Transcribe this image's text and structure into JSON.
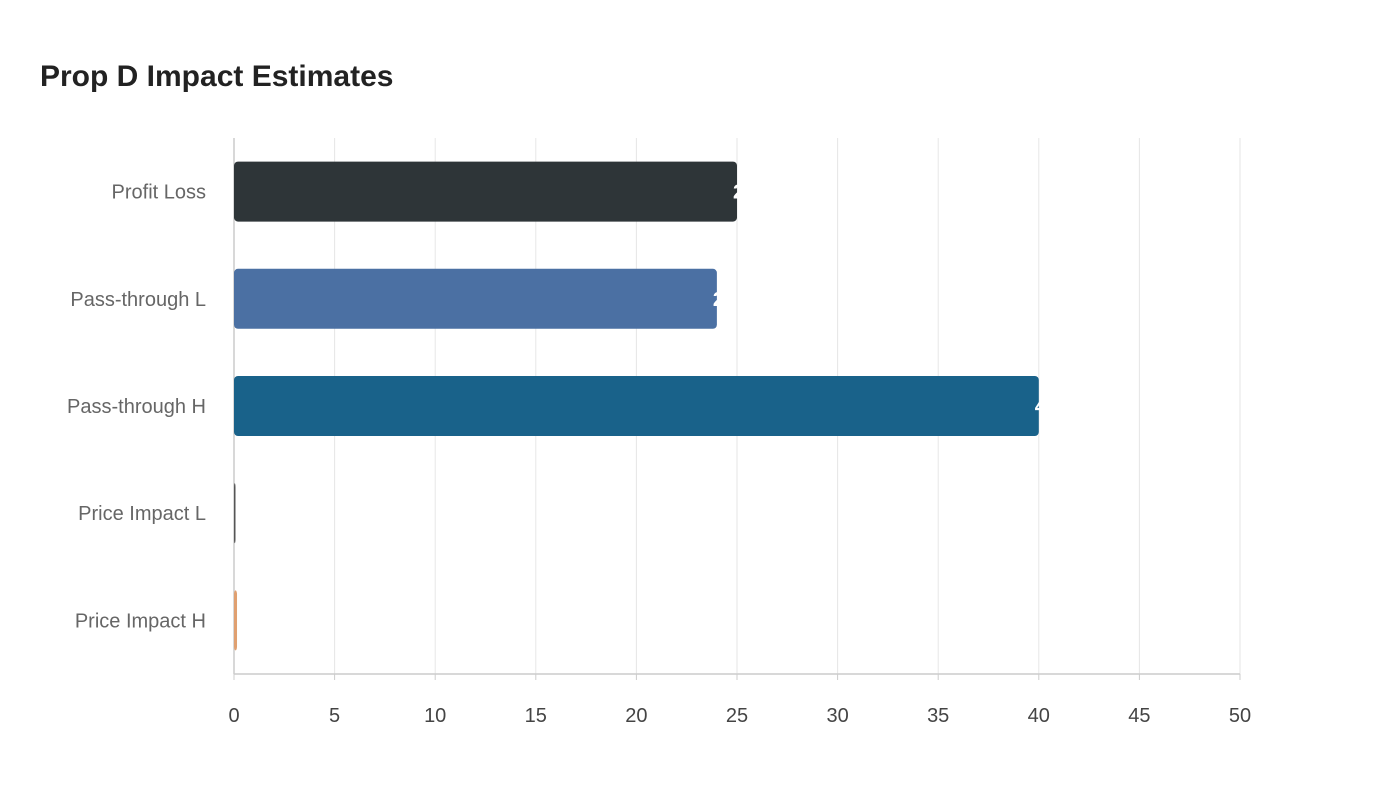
{
  "chart_data": {
    "type": "bar",
    "orientation": "horizontal",
    "title": "Prop D Impact Estimates",
    "xlabel": "",
    "ylabel": "",
    "categories": [
      "Profit Loss",
      "Pass-through L",
      "Pass-through H",
      "Price Impact L",
      "Price Impact H"
    ],
    "values": [
      25,
      24,
      40,
      0.06,
      0.15
    ],
    "colors": [
      "#2e3538",
      "#4b70a3",
      "#19628a",
      "#555555",
      "#e0a070"
    ],
    "xlim": [
      0,
      50
    ],
    "xticks": [
      "0",
      "5",
      "10",
      "15",
      "20",
      "25",
      "30",
      "35",
      "40",
      "45",
      "50"
    ],
    "grid": true,
    "data_labels": true
  }
}
